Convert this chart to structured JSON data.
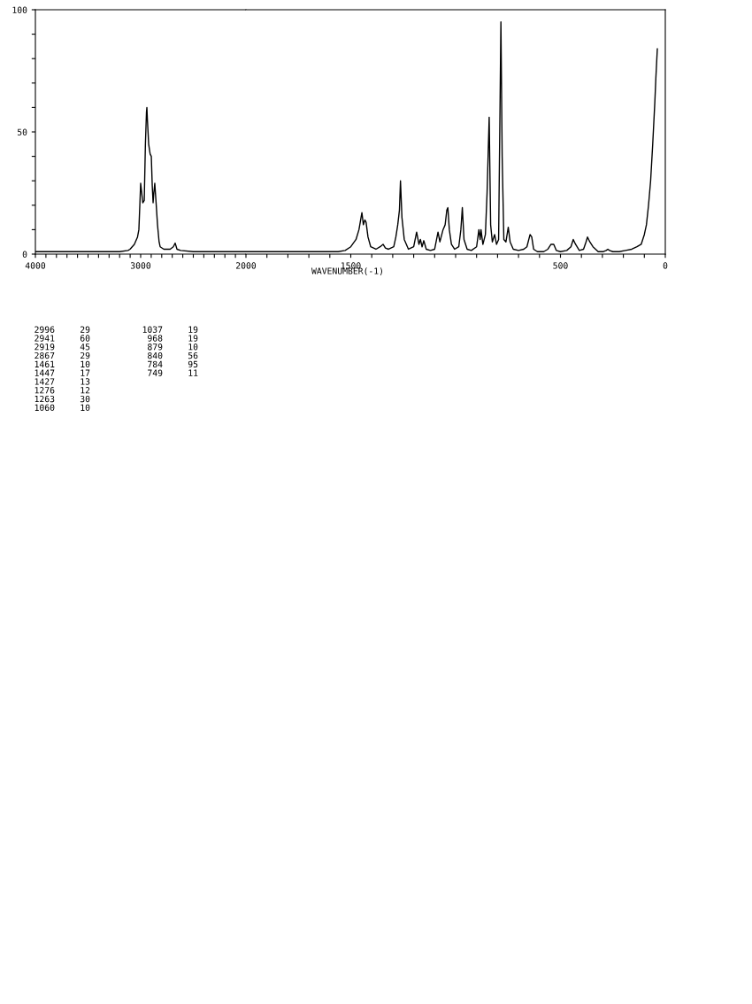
{
  "chart_data": [
    {
      "type": "line",
      "xlim": [
        4000,
        2000
      ],
      "ylim": [
        0,
        100
      ],
      "xticks": [
        4000,
        {
          "value": 3900,
          "label": null
        },
        {
          "value": 3800,
          "label": null
        },
        {
          "value": 3700,
          "label": null
        },
        {
          "value": 3600,
          "label": null
        },
        {
          "value": 3500,
          "label": null
        },
        {
          "value": 3400,
          "label": null
        },
        {
          "value": 3300,
          "label": null
        },
        {
          "value": 3200,
          "label": null
        },
        {
          "value": 3100,
          "label": null
        },
        3000,
        {
          "value": 2900,
          "label": null
        },
        {
          "value": 2800,
          "label": null
        },
        {
          "value": 2700,
          "label": null
        },
        {
          "value": 2600,
          "label": null
        },
        {
          "value": 2500,
          "label": null
        },
        {
          "value": 2400,
          "label": null
        },
        {
          "value": 2300,
          "label": null
        },
        {
          "value": 2200,
          "label": null
        },
        {
          "value": 2100,
          "label": null
        },
        2000
      ],
      "yticks": [
        0,
        {
          "value": 10,
          "label": null
        },
        {
          "value": 20,
          "label": null
        },
        {
          "value": 30,
          "label": null
        },
        {
          "value": 40,
          "label": null
        },
        50,
        {
          "value": 60,
          "label": null
        },
        {
          "value": 70,
          "label": null
        },
        {
          "value": 80,
          "label": null
        },
        {
          "value": 90,
          "label": null
        },
        100
      ],
      "grid": false,
      "legend": false,
      "series": [
        {
          "color": "#000000",
          "x": [
            4000,
            3700,
            3400,
            3200,
            3120,
            3101,
            3060,
            3030,
            3017,
            3008,
            3000,
            2990,
            2980,
            2966,
            2955,
            2945,
            2941,
            2936,
            2924,
            2910,
            2899,
            2890,
            2882,
            2875,
            2866,
            2855,
            2840,
            2825,
            2815,
            2780,
            2720,
            2690,
            2672,
            2655,
            2620,
            2500,
            2300,
            2000
          ],
          "values": [
            1,
            1,
            1,
            1,
            1.5,
            2,
            4,
            7,
            10,
            20,
            29,
            25,
            21,
            22,
            45,
            58,
            60,
            55,
            45,
            41,
            40,
            28,
            21,
            25,
            29,
            22,
            12,
            5,
            3,
            2,
            2,
            3,
            4.5,
            2,
            1.5,
            1,
            1,
            1
          ]
        }
      ]
    },
    {
      "type": "line",
      "xlim": [
        2000,
        0
      ],
      "ylim": [
        0,
        100
      ],
      "tick_labels": "x",
      "xlabel": "WAVENUMBER(-1)",
      "xticks": [
        {
          "value": 1900,
          "label": null
        },
        {
          "value": 1800,
          "label": null
        },
        {
          "value": 1700,
          "label": null
        },
        {
          "value": 1600,
          "label": null
        },
        1500,
        {
          "value": 1400,
          "label": null
        },
        {
          "value": 1300,
          "label": null
        },
        {
          "value": 1200,
          "label": null
        },
        {
          "value": 1100,
          "label": null
        },
        {
          "value": 1000,
          "label": null
        },
        {
          "value": 900,
          "label": null
        },
        {
          "value": 800,
          "label": null
        },
        {
          "value": 700,
          "label": null
        },
        {
          "value": 600,
          "label": null
        },
        500,
        {
          "value": 400,
          "label": null
        },
        {
          "value": 300,
          "label": null
        },
        {
          "value": 200,
          "label": null
        },
        {
          "value": 100,
          "label": null
        },
        0
      ],
      "grid": false,
      "legend": false,
      "series": [
        {
          "color": "#000000",
          "x": [
            2000,
            1700,
            1560,
            1527,
            1500,
            1475,
            1461,
            1455,
            1447,
            1440,
            1433,
            1427,
            1418,
            1405,
            1380,
            1360,
            1346,
            1335,
            1320,
            1295,
            1285,
            1276,
            1268,
            1263,
            1256,
            1245,
            1225,
            1200,
            1186,
            1175,
            1168,
            1160,
            1152,
            1140,
            1120,
            1100,
            1084,
            1075,
            1060,
            1050,
            1042,
            1037,
            1030,
            1020,
            1005,
            985,
            975,
            968,
            960,
            945,
            925,
            900,
            889,
            883,
            879,
            870,
            858,
            850,
            840,
            833,
            825,
            814,
            805,
            795,
            784,
            778,
            770,
            760,
            749,
            740,
            725,
            700,
            675,
            660,
            645,
            637,
            628,
            610,
            580,
            560,
            545,
            532,
            520,
            500,
            470,
            450,
            439,
            428,
            410,
            390,
            378,
            371,
            360,
            345,
            320,
            295,
            282,
            274,
            266,
            250,
            220,
            190,
            160,
            135,
            115,
            100,
            90,
            80,
            70,
            60,
            50,
            45,
            38
          ],
          "values": [
            1,
            1,
            1,
            1.5,
            3,
            6,
            10,
            13,
            17,
            12,
            14,
            13,
            7,
            3,
            2,
            3,
            4,
            2.5,
            2,
            3,
            7,
            12,
            18,
            30,
            15,
            6,
            2,
            3,
            9,
            4,
            6,
            3,
            5.5,
            2,
            1.5,
            2,
            9,
            5,
            10,
            12,
            18,
            19,
            10,
            4,
            2,
            3,
            10,
            19,
            6,
            2,
            1.5,
            3,
            10,
            6,
            10,
            4,
            8,
            25,
            56,
            12,
            5,
            8,
            4,
            6,
            95,
            40,
            6,
            5,
            11,
            5,
            2,
            1.5,
            2,
            3,
            8,
            7,
            2,
            1,
            1,
            2,
            4,
            4,
            1.5,
            1,
            1.5,
            3,
            6,
            4,
            1.5,
            2,
            5,
            7,
            5,
            3,
            1,
            1,
            1.5,
            2,
            1.5,
            1,
            1,
            1.5,
            2,
            3,
            4,
            8,
            12,
            20,
            30,
            45,
            62,
            72,
            84
          ]
        }
      ],
      "annotations": [
        "2996",
        "29",
        "2941",
        "60",
        "2919",
        "45",
        "2867",
        "29",
        "1461",
        "10",
        "1447",
        "17",
        "1427",
        "13",
        "1276",
        "12",
        "1263",
        "30",
        "1060",
        "10",
        "1037",
        "19",
        "968",
        "19",
        "879",
        "10",
        "840",
        "56",
        "784",
        "95",
        "749",
        "11"
      ]
    }
  ]
}
